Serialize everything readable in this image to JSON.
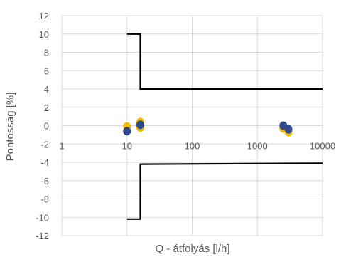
{
  "chart_data": {
    "type": "scatter",
    "title": "",
    "xlabel": "Q - átfolyás [l/h]",
    "ylabel": "Pontosság [%]",
    "xscale": "log",
    "xlim": [
      1,
      10000
    ],
    "ylim": [
      -12,
      12
    ],
    "grid": true,
    "legend": "none",
    "y_ticks": [
      "12",
      "10",
      "8",
      "6",
      "4",
      "2",
      "0",
      "-2",
      "-4",
      "-6",
      "-8",
      "-10",
      "-12"
    ],
    "x_ticks": [
      "1",
      "10",
      "100",
      "1000",
      "10000"
    ],
    "x_tick_values": [
      1,
      10,
      100,
      1000,
      10000
    ],
    "y_tick_values": [
      12,
      10,
      8,
      6,
      4,
      2,
      0,
      -2,
      -4,
      -6,
      -8,
      -10,
      -12
    ],
    "series": [
      {
        "color": "#f5b800",
        "points": [
          {
            "x": 10,
            "y": -0.1
          },
          {
            "x": 16,
            "y": 0.4
          },
          {
            "x": 16,
            "y": -0.2
          },
          {
            "x": 2500,
            "y": -0.3
          },
          {
            "x": 3000,
            "y": -0.7
          }
        ]
      },
      {
        "color": "#2e4a8a",
        "points": [
          {
            "x": 10,
            "y": -0.6
          },
          {
            "x": 16,
            "y": 0.1
          },
          {
            "x": 2500,
            "y": 0.0
          },
          {
            "x": 3000,
            "y": -0.4
          }
        ]
      }
    ],
    "limit_lines": [
      {
        "color": "#000000",
        "points": [
          [
            10,
            10
          ],
          [
            16,
            10
          ],
          [
            16,
            4
          ],
          [
            10000,
            4
          ]
        ]
      },
      {
        "color": "#000000",
        "points": [
          [
            10,
            -10.2
          ],
          [
            16,
            -10.2
          ],
          [
            16,
            -4.2
          ],
          [
            10000,
            -4.1
          ]
        ]
      }
    ]
  }
}
